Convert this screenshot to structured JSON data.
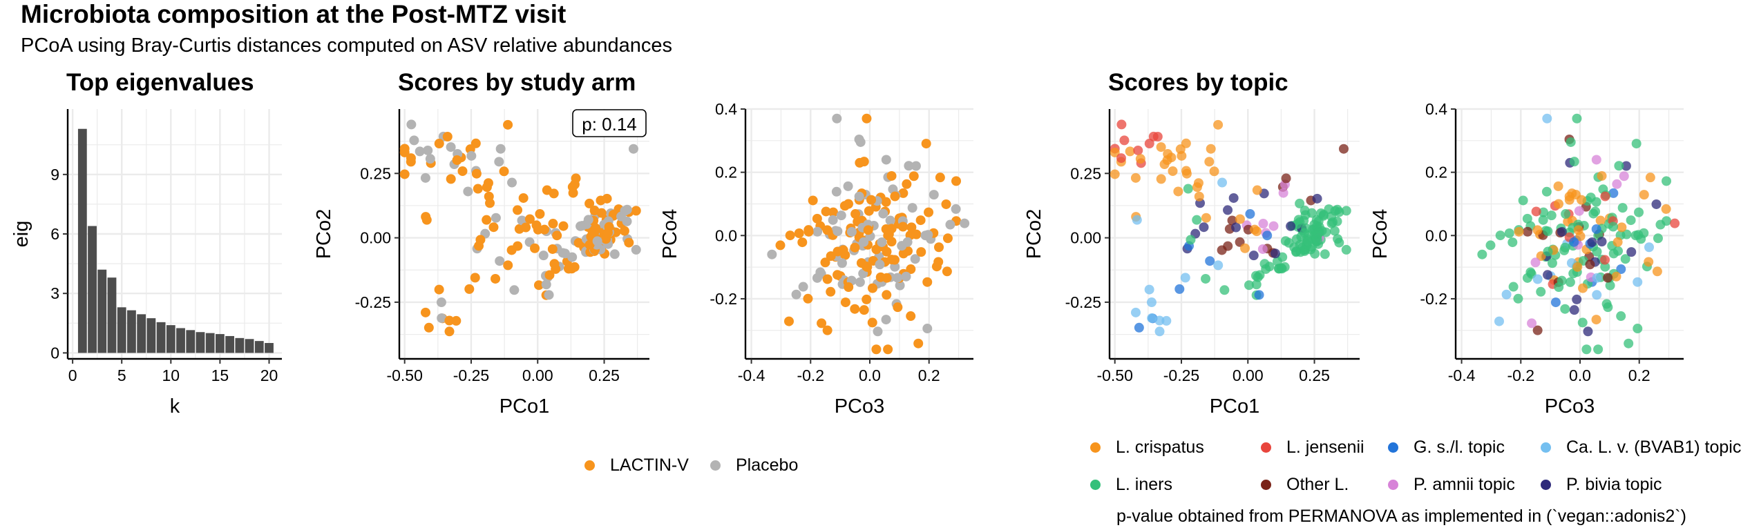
{
  "title": "Microbiota composition at the Post-MTZ visit",
  "subtitle": "PCoA using Bray-Curtis distances computed on ASV relative abundances",
  "panel_titles": {
    "eigen": "Top eigenvalues",
    "arm": "Scores by study arm",
    "topic": "Scores by topic"
  },
  "p_label": "p: 0.14",
  "caption": "p-value obtained from PERMANOVA as implemented in (`vegan::adonis2`)",
  "colors": {
    "grid": "#ebebeb",
    "bar": "#4d4d4d"
  },
  "arm_legend": [
    {
      "label": "LACTIN-V",
      "color": "#f7941d"
    },
    {
      "label": "Placebo",
      "color": "#b3b3b3"
    }
  ],
  "topic_legend": [
    {
      "label": "L. crispatus",
      "color": "#f7941d"
    },
    {
      "label": "L. jensenii",
      "color": "#e8453c"
    },
    {
      "label": "G. s./l. topic",
      "color": "#2274d9"
    },
    {
      "label": "Ca. L. v. (BVAB1) topic",
      "color": "#74bff0"
    },
    {
      "label": "L. iners",
      "color": "#35c07a"
    },
    {
      "label": "Other L.",
      "color": "#7a2318"
    },
    {
      "label": "P. amnii topic",
      "color": "#d783d8"
    },
    {
      "label": "P. bivia topic",
      "color": "#2e2a7a"
    }
  ],
  "chart_data": [
    {
      "type": "bar",
      "title": "Top eigenvalues",
      "xlabel": "k",
      "ylabel": "eig",
      "categories": [
        1,
        2,
        3,
        4,
        5,
        6,
        7,
        8,
        9,
        10,
        11,
        12,
        13,
        14,
        15,
        16,
        17,
        18,
        19,
        20
      ],
      "values": [
        11.3,
        6.4,
        4.2,
        3.8,
        2.3,
        2.15,
        1.95,
        1.75,
        1.55,
        1.4,
        1.25,
        1.15,
        1.05,
        1.0,
        0.95,
        0.85,
        0.75,
        0.7,
        0.6,
        0.5
      ],
      "xticks": [
        "0",
        "5",
        "10",
        "15",
        "20"
      ],
      "yticks": [
        "0",
        "3",
        "6",
        "9"
      ],
      "xlim": [
        -0.5,
        21.3
      ],
      "ylim": [
        -0.3,
        12.3
      ],
      "grid": true
    },
    {
      "type": "scatter",
      "title": "Scores by study arm",
      "xlabel": "PCo1",
      "ylabel": "PCo2",
      "xticks": [
        "-0.50",
        "-0.25",
        "0.00",
        "0.25"
      ],
      "yticks": [
        "-0.25",
        "0.00",
        "0.25"
      ],
      "xlim": [
        -0.52,
        0.42
      ],
      "ylim": [
        -0.47,
        0.5
      ],
      "grid": true,
      "annotation": "p: 0.14"
    },
    {
      "type": "scatter",
      "xlabel": "PCo3",
      "ylabel": "PCo4",
      "xticks": [
        "-0.4",
        "-0.2",
        "0.0",
        "0.2"
      ],
      "yticks": [
        "-0.2",
        "0.0",
        "0.2",
        "0.4"
      ],
      "xlim": [
        -0.42,
        0.35
      ],
      "ylim": [
        -0.39,
        0.4
      ],
      "grid": true
    },
    {
      "type": "scatter",
      "title": "Scores by topic",
      "xlabel": "PCo1",
      "ylabel": "PCo2",
      "xticks": [
        "-0.50",
        "-0.25",
        "0.00",
        "0.25"
      ],
      "yticks": [
        "-0.25",
        "0.00",
        "0.25"
      ],
      "xlim": [
        -0.52,
        0.42
      ],
      "ylim": [
        -0.47,
        0.5
      ],
      "grid": true
    },
    {
      "type": "scatter",
      "xlabel": "PCo3",
      "ylabel": "PCo4",
      "xticks": [
        "-0.4",
        "-0.2",
        "0.0",
        "0.2"
      ],
      "yticks": [
        "-0.2",
        "0.0",
        "0.2",
        "0.4"
      ],
      "xlim": [
        -0.42,
        0.35
      ],
      "ylim": [
        -0.39,
        0.4
      ],
      "grid": true
    }
  ]
}
